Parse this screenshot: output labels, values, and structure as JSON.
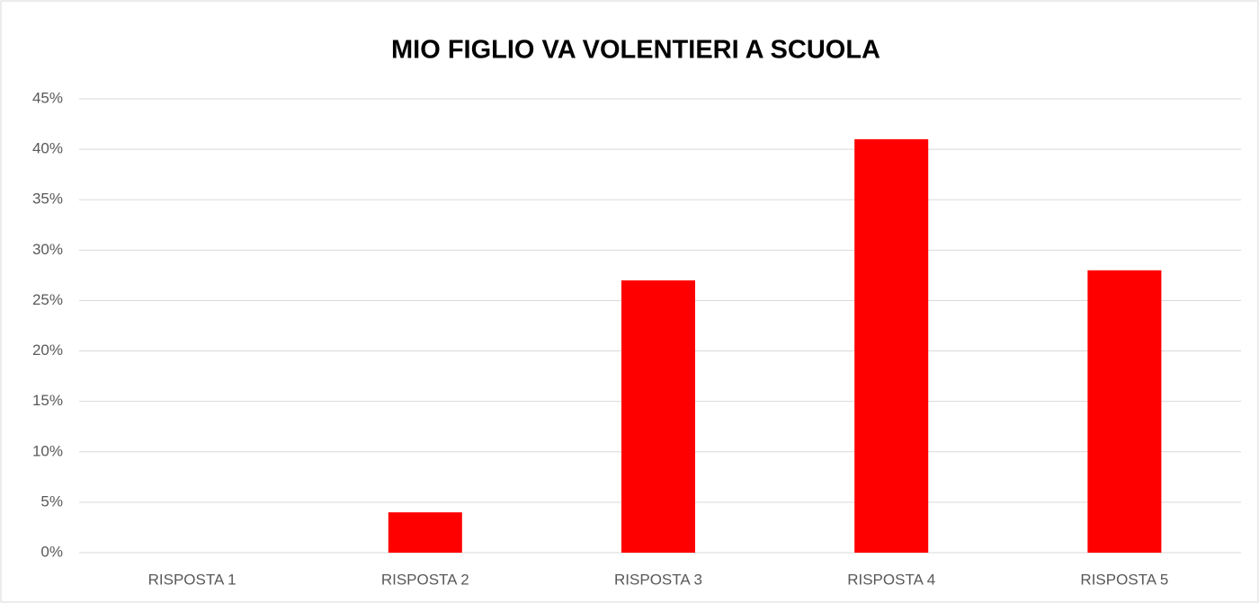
{
  "chart_data": {
    "type": "bar",
    "title": "MIO FIGLIO VA VOLENTIERI A SCUOLA",
    "categories": [
      "RISPOSTA 1",
      "RISPOSTA 2",
      "RISPOSTA 3",
      "RISPOSTA 4",
      "RISPOSTA 5"
    ],
    "values": [
      0,
      4,
      27,
      41,
      28
    ],
    "color": "#ff0000",
    "ylim": [
      0,
      45
    ],
    "yticks": [
      {
        "value": 0,
        "label": "0%"
      },
      {
        "value": 5,
        "label": "5%"
      },
      {
        "value": 10,
        "label": "10%"
      },
      {
        "value": 15,
        "label": "15%"
      },
      {
        "value": 20,
        "label": "20%"
      },
      {
        "value": 25,
        "label": "25%"
      },
      {
        "value": 30,
        "label": "30%"
      },
      {
        "value": 35,
        "label": "35%"
      },
      {
        "value": 40,
        "label": "40%"
      },
      {
        "value": 45,
        "label": "45%"
      }
    ],
    "grid": true
  }
}
